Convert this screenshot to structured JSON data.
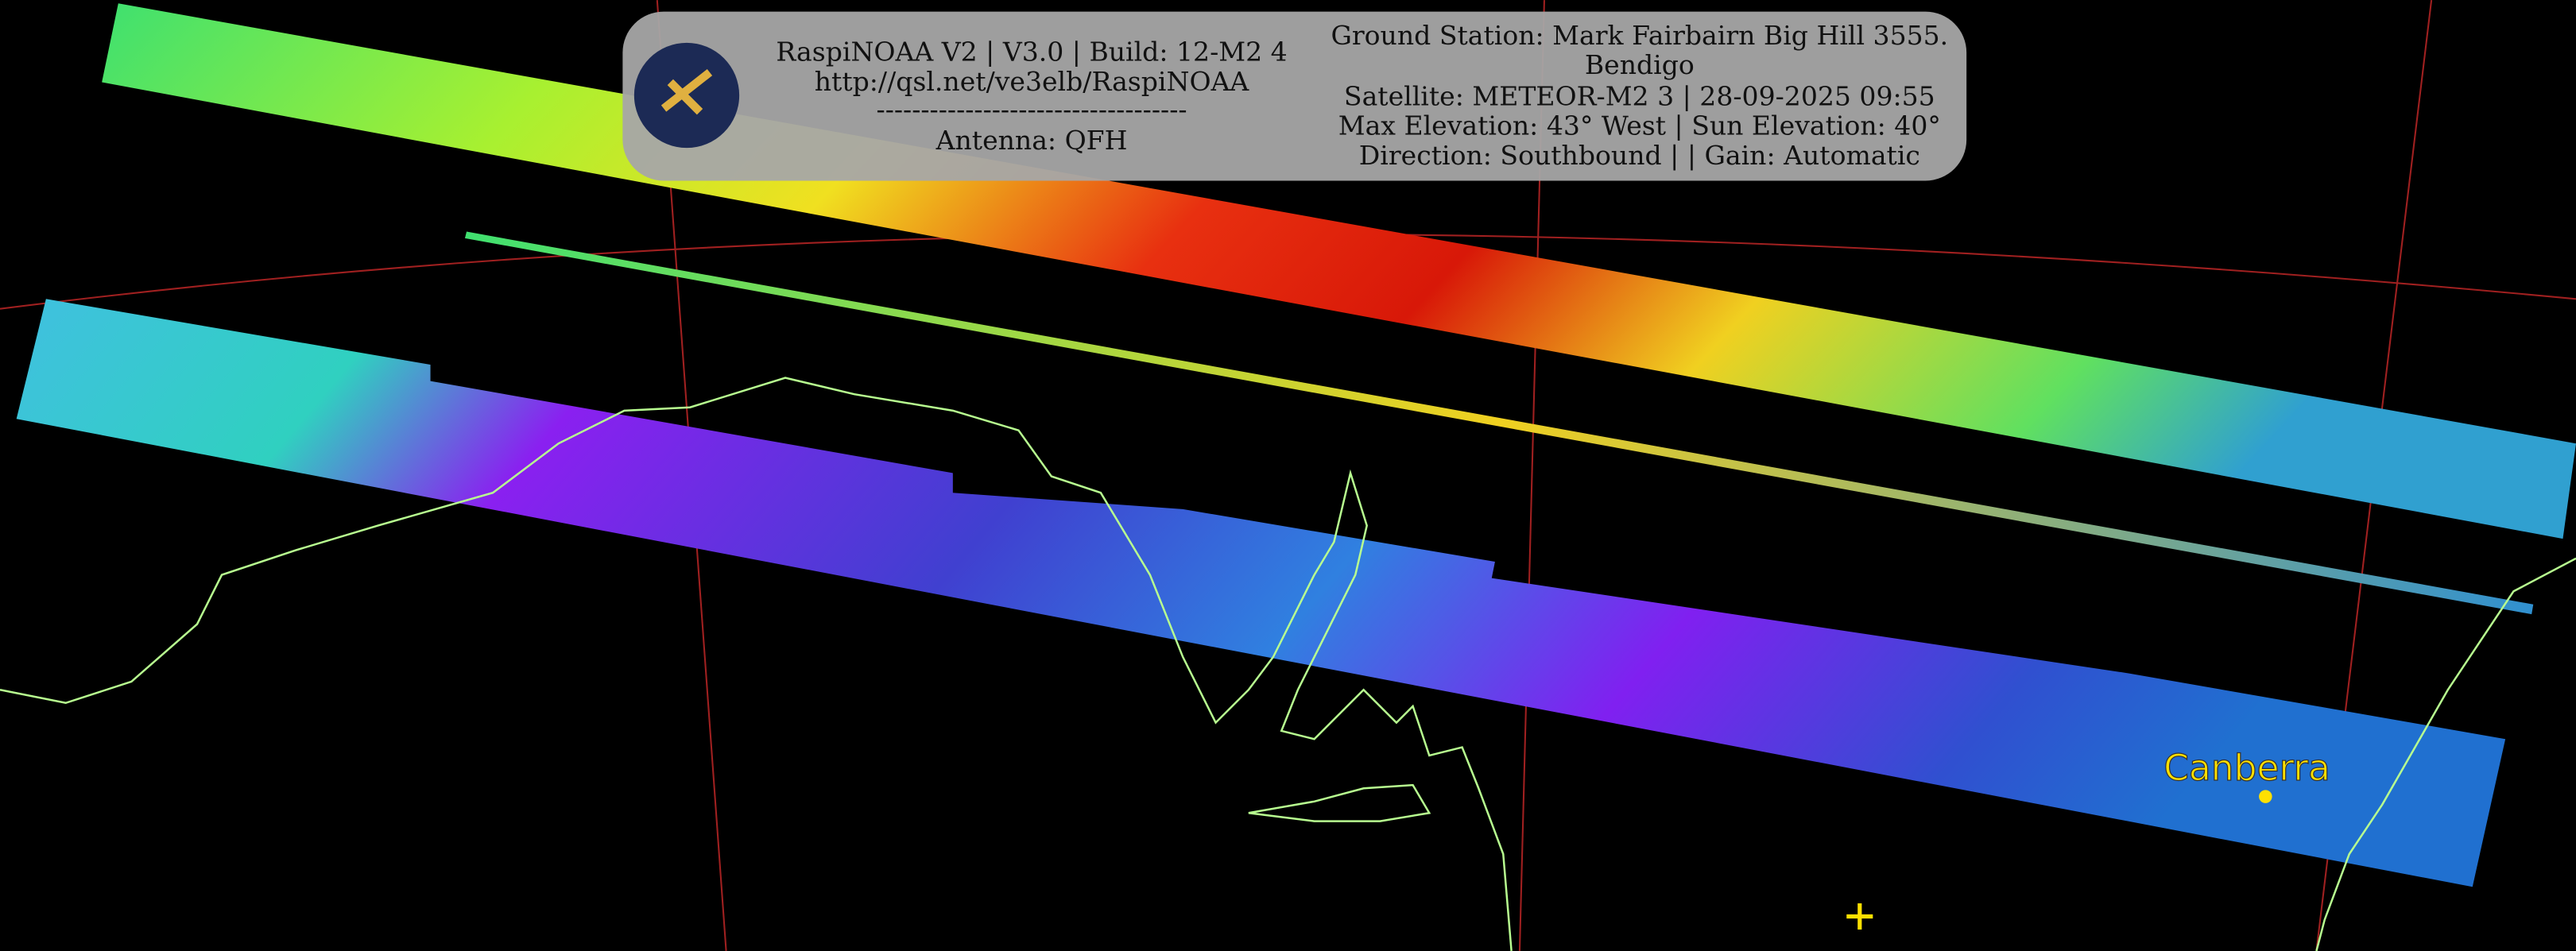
{
  "header": {
    "left_lines": [
      "RaspiNOAA V2 | V3.0 | Build: 12-M2 4",
      "http://qsl.net/ve3elb/RaspiNOAA",
      "-----------------------------------",
      "Antenna: QFH"
    ],
    "right_lines": [
      "Ground Station: Mark Fairbairn Big Hill 3555.",
      "Bendigo",
      "Satellite: METEOR-M2 3 | 28-09-2025 09:55",
      "Max Elevation: 43° West | Sun Elevation: 40°",
      "Direction: Southbound | | Gain: Automatic"
    ]
  },
  "labels": {
    "city": "Canberra"
  }
}
